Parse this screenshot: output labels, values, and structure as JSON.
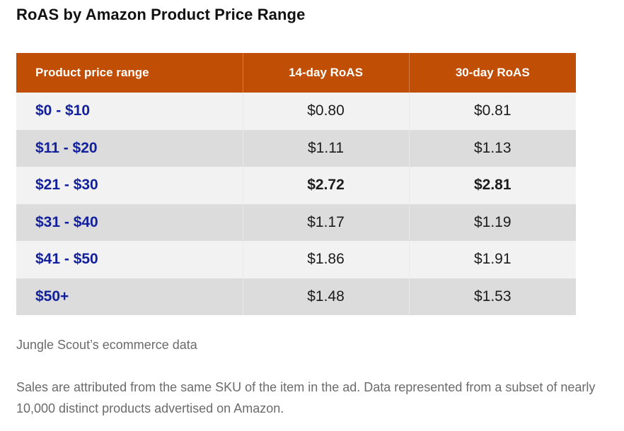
{
  "title": "RoAS by Amazon Product Price Range",
  "table": {
    "headers": [
      "Product price range",
      "14-day RoAS",
      "30-day RoAS"
    ],
    "rows": [
      {
        "range": "$0 - $10",
        "roas14": "$0.80",
        "roas30": "$0.81"
      },
      {
        "range": "$11 - $20",
        "roas14": "$1.11",
        "roas30": "$1.13"
      },
      {
        "range": "$21 - $30",
        "roas14": "$2.72",
        "roas30": "$2.81"
      },
      {
        "range": "$31 - $40",
        "roas14": "$1.17",
        "roas30": "$1.19"
      },
      {
        "range": "$41 - $50",
        "roas14": "$1.86",
        "roas30": "$1.91"
      },
      {
        "range": "$50+",
        "roas14": "$1.48",
        "roas30": "$1.53"
      }
    ],
    "highlight_row": "$21 - $30"
  },
  "colors": {
    "header_bg": "#c04e05",
    "range_text": "#12209c",
    "row_light": "#f2f2f2",
    "row_dark": "#dcdcdc"
  },
  "source": "Jungle Scout’s ecommerce data",
  "note": "Sales are attributed from the same SKU of the item in the ad. Data represented from a subset of nearly 10,000 distinct products advertised on Amazon."
}
